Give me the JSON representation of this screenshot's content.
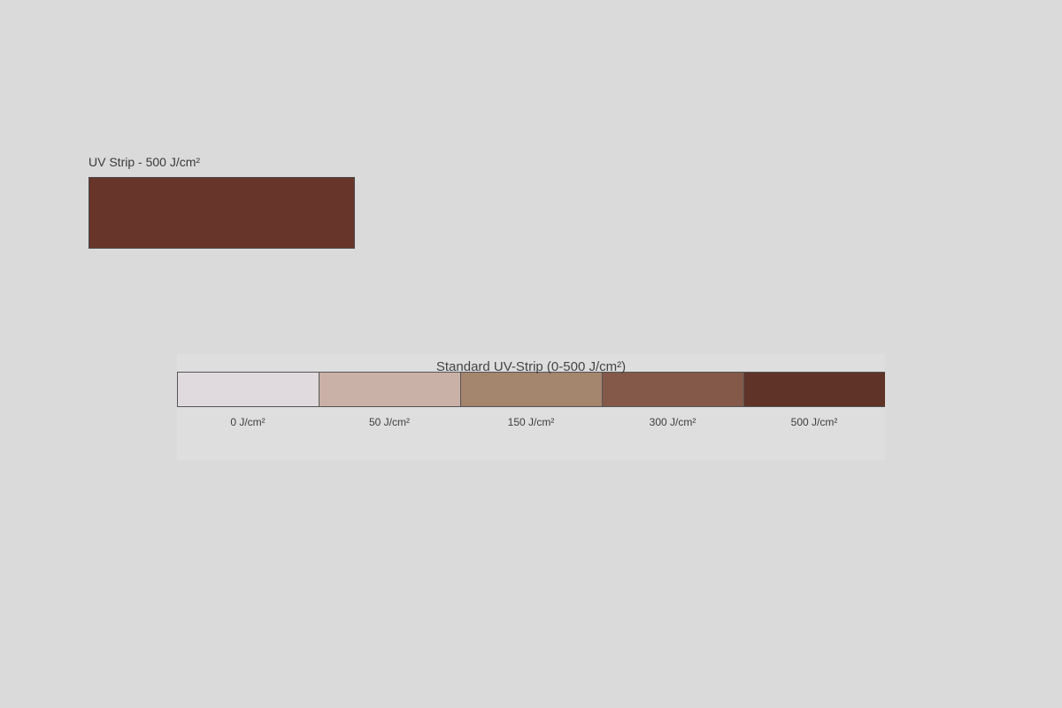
{
  "sample": {
    "label": "UV Strip - 500 J/cm²",
    "color": "#68352a"
  },
  "reference": {
    "title": "Standard UV-Strip (0-500 J/cm²)",
    "steps": [
      {
        "label": "0 J/cm²",
        "color": "#e0dade"
      },
      {
        "label": "50 J/cm²",
        "color": "#c9b1a7"
      },
      {
        "label": "150 J/cm²",
        "color": "#a4856d"
      },
      {
        "label": "300 J/cm²",
        "color": "#84594a"
      },
      {
        "label": "500 J/cm²",
        "color": "#5f3327"
      }
    ]
  }
}
